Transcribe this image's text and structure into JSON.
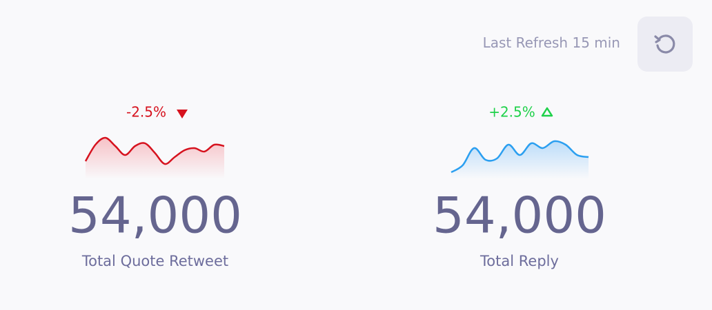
{
  "header": {
    "refresh_label": "Last Refresh 15 min"
  },
  "cards": [
    {
      "change": "-2.5%",
      "color": "#d6121e",
      "value": "54,000",
      "label": "Total Quote Retweet",
      "sparkline": [
        26,
        50,
        60,
        48,
        35,
        48,
        52,
        38,
        22,
        32,
        42,
        45,
        40,
        50,
        48
      ]
    },
    {
      "change": "+2.5%",
      "color": "#1fd14a",
      "line_color": "#2b9ff0",
      "value": "54,000",
      "label": "Total Reply",
      "sparkline": [
        10,
        20,
        45,
        28,
        30,
        50,
        35,
        52,
        45,
        55,
        50,
        35,
        32
      ]
    }
  ]
}
